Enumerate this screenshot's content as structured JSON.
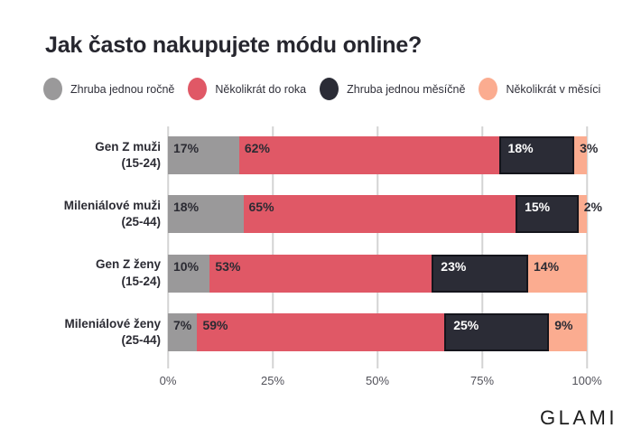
{
  "title": "Jak často nakupujete módu online?",
  "brand_logo": "GLAMI",
  "legend": {
    "items": [
      {
        "label": "Zhruba jednou ročně",
        "color": "#9a999a"
      },
      {
        "label": "Několikrát do roka",
        "color": "#e05866"
      },
      {
        "label": "Zhruba jednou měsíčně",
        "color": "#2b2c36"
      },
      {
        "label": "Několikrát v měsíci",
        "color": "#fbac90"
      }
    ]
  },
  "chart_data": {
    "type": "bar",
    "orientation": "horizontal",
    "stacked": true,
    "title": "Jak často nakupujete módu online?",
    "categories": [
      {
        "name": "Gen Z muži",
        "age": "(15-24)"
      },
      {
        "name": "Mileniálové muži",
        "age": "(25-44)"
      },
      {
        "name": "Gen Z ženy",
        "age": "(15-24)"
      },
      {
        "name": "Mileniálové ženy",
        "age": "(25-44)"
      }
    ],
    "series": [
      {
        "name": "Zhruba jednou ročně",
        "color": "#9a999a",
        "values": [
          17,
          18,
          10,
          7
        ]
      },
      {
        "name": "Několikrát do roka",
        "color": "#e05866",
        "values": [
          62,
          65,
          53,
          59
        ]
      },
      {
        "name": "Zhruba jednou měsíčně",
        "color": "#2b2c36",
        "values": [
          18,
          15,
          23,
          25
        ]
      },
      {
        "name": "Několikrát v měsíci",
        "color": "#fbac90",
        "values": [
          3,
          2,
          14,
          9
        ]
      }
    ],
    "value_suffix": "%",
    "x_ticks": [
      "0%",
      "25%",
      "50%",
      "75%",
      "100%"
    ],
    "xlim": [
      0,
      100
    ],
    "grid": true,
    "legend_position": "top",
    "colors_meta": {
      "gridline": "#d4d4d4",
      "label_dark": "#2b2b33",
      "label_light": "#ffffff"
    }
  }
}
